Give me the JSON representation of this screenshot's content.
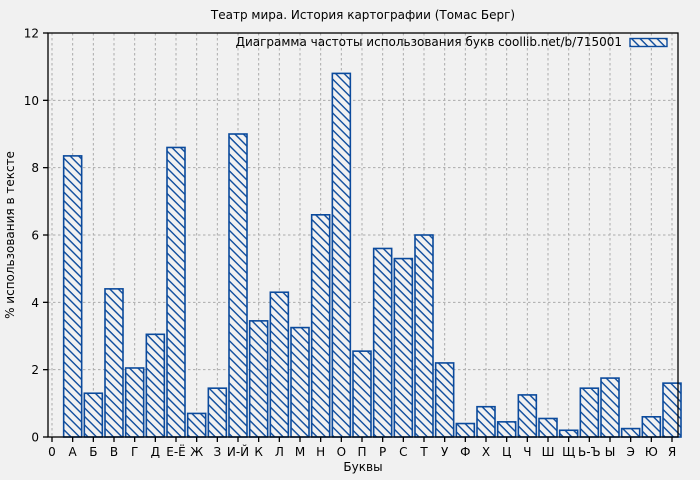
{
  "window": {
    "background": "#f1f1f1"
  },
  "chart_data": {
    "type": "bar",
    "title": "Театр мира. История картографии (Томас Берг)",
    "legend": {
      "label": "Диаграмма частоты использования букв coollib.net/b/715001",
      "position": "top-right",
      "swatch": "blue-diagonal-hatch"
    },
    "xlabel": "Буквы",
    "ylabel": "% использования в тексте",
    "x_origin_tick": "0",
    "categories": [
      "А",
      "Б",
      "В",
      "Г",
      "Д",
      "Е-Ё",
      "Ж",
      "З",
      "И-Й",
      "К",
      "Л",
      "М",
      "Н",
      "О",
      "П",
      "Р",
      "С",
      "Т",
      "У",
      "Ф",
      "Х",
      "Ц",
      "Ч",
      "Ш",
      "Щ",
      "Ь-Ъ",
      "Ы",
      "Э",
      "Ю",
      "Я"
    ],
    "values": [
      8.35,
      1.3,
      4.4,
      2.05,
      3.05,
      8.6,
      0.7,
      1.45,
      9.0,
      3.45,
      4.3,
      3.25,
      6.6,
      10.8,
      2.55,
      5.6,
      5.3,
      6.0,
      2.2,
      0.4,
      0.9,
      0.45,
      1.25,
      0.55,
      0.2,
      1.45,
      1.75,
      0.25,
      0.6,
      1.6
    ],
    "yticks": [
      0,
      2,
      4,
      6,
      8,
      10,
      12
    ],
    "ylim": [
      0,
      12
    ],
    "grid": true,
    "bar_style": "diagonal-hatch",
    "colors": {
      "bar": "#0b4a9c",
      "grid": "#ababab",
      "axis": "#000000",
      "text": "#000000",
      "plot_background": "#f1f1f1"
    }
  }
}
